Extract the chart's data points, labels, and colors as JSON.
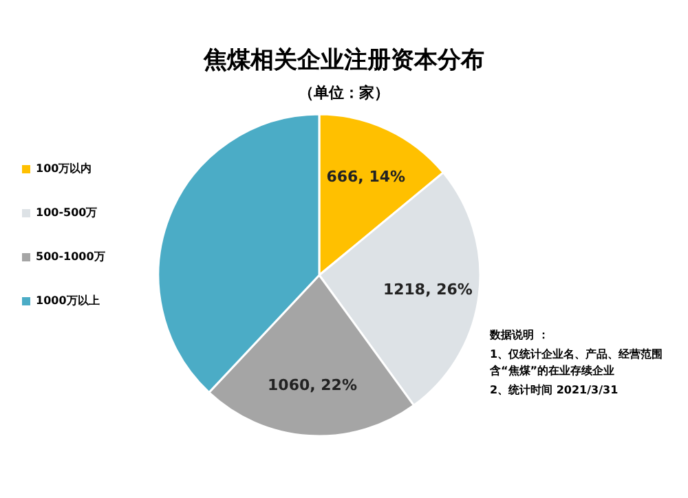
{
  "chart_data": {
    "type": "pie",
    "title": "焦煤相关企业注册资本分布",
    "subtitle": "（单位：家）",
    "categories": [
      "100万以内",
      "100-500万",
      "500-1000万",
      "1000万以上"
    ],
    "values": [
      14,
      26,
      22,
      38
    ],
    "colors": [
      "#ffc000",
      "#dde2e6",
      "#a5a5a5",
      "#4bacc6"
    ],
    "value_labels": [
      "666, 14%",
      "1218, 26%",
      "1060, 22%",
      null
    ],
    "legend": "left",
    "annotations": [
      "数据说明 ：",
      "1、仅统计企业名、产品、经营范围含“焦煤”的在业存续企业",
      "2、统计时间 2021/3/31"
    ]
  }
}
